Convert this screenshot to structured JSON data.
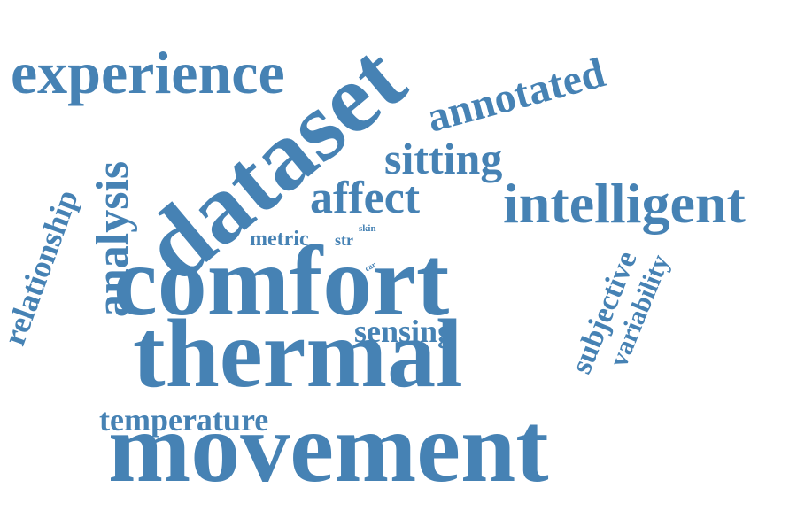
{
  "word_cloud": {
    "color": "#4682b4",
    "words": {
      "comfort": "comfort",
      "thermal": "thermal",
      "movement": "movement",
      "dataset": "dataset",
      "experience": "experience",
      "intelligent": "intelligent",
      "annotated": "annotated",
      "sitting": "sitting",
      "affect": "affect",
      "analysis": "analysis",
      "relationship": "relationship",
      "temperature": "temperature",
      "sensing": "sensing",
      "subjective": "subjective",
      "variability": "variability",
      "metric": "metric",
      "str": "str",
      "skin": "skin",
      "car": "car"
    }
  }
}
